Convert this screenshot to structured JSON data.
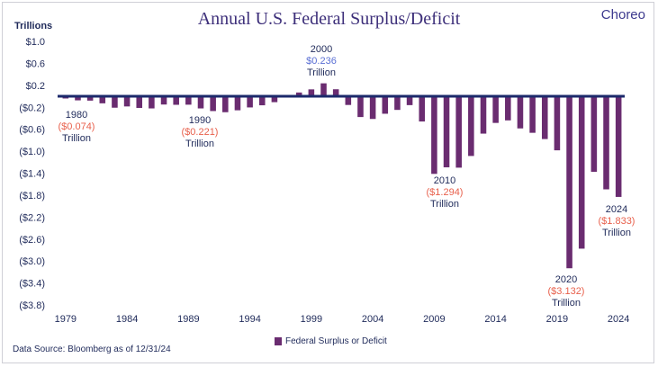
{
  "header": {
    "title": "Annual U.S. Federal Surplus/Deficit",
    "brand": "Choreo",
    "units_label": "Trillions"
  },
  "footer": {
    "source": "Data Source: Bloomberg as of 12/31/24"
  },
  "colors": {
    "bar": "#6a2c70",
    "zero_line": "#1c2a6b",
    "negative_value": "#e8604c",
    "positive_value": "#5a6fd4",
    "text": "#1f2a5a"
  },
  "chart_data": {
    "type": "bar",
    "title": "Annual U.S. Federal Surplus/Deficit",
    "ylabel": "Trillions",
    "ylim": [
      -3.8,
      1.0
    ],
    "yticks": [
      "$1.0",
      "$0.6",
      "$0.2",
      "($0.2)",
      "($0.6)",
      "($1.0)",
      "($1.4)",
      "($1.8)",
      "($2.2)",
      "($2.6)",
      "($3.0)",
      "($3.4)",
      "($3.8)"
    ],
    "ytick_values": [
      1.0,
      0.6,
      0.2,
      -0.2,
      -0.6,
      -1.0,
      -1.4,
      -1.8,
      -2.2,
      -2.6,
      -3.0,
      -3.4,
      -3.8
    ],
    "xticks": [
      "1979",
      "1984",
      "1989",
      "1994",
      "1999",
      "2004",
      "2009",
      "2014",
      "2019",
      "2024"
    ],
    "legend": [
      "Federal Surplus or Deficit"
    ],
    "legend_position": "bottom",
    "grid": false,
    "series": [
      {
        "name": "Federal Surplus or Deficit",
        "categories": [
          "1979",
          "1980",
          "1981",
          "1982",
          "1983",
          "1984",
          "1985",
          "1986",
          "1987",
          "1988",
          "1989",
          "1990",
          "1991",
          "1992",
          "1993",
          "1994",
          "1995",
          "1996",
          "1997",
          "1998",
          "1999",
          "2000",
          "2001",
          "2002",
          "2003",
          "2004",
          "2005",
          "2006",
          "2007",
          "2008",
          "2009",
          "2010",
          "2011",
          "2012",
          "2013",
          "2014",
          "2015",
          "2016",
          "2017",
          "2018",
          "2019",
          "2020",
          "2021",
          "2022",
          "2023",
          "2024"
        ],
        "values": [
          -0.04,
          -0.074,
          -0.079,
          -0.128,
          -0.208,
          -0.185,
          -0.212,
          -0.221,
          -0.15,
          -0.155,
          -0.153,
          -0.221,
          -0.269,
          -0.29,
          -0.255,
          -0.203,
          -0.164,
          -0.107,
          -0.022,
          0.069,
          0.126,
          0.236,
          0.128,
          -0.158,
          -0.378,
          -0.413,
          -0.318,
          -0.248,
          -0.161,
          -0.459,
          -1.413,
          -1.294,
          -1.3,
          -1.087,
          -0.68,
          -0.485,
          -0.439,
          -0.585,
          -0.665,
          -0.779,
          -0.984,
          -3.132,
          -2.775,
          -1.375,
          -1.695,
          -1.833
        ]
      }
    ],
    "annotations": [
      {
        "year": "1980",
        "value": "($0.074)",
        "unit": "Trillion"
      },
      {
        "year": "1990",
        "value": "($0.221)",
        "unit": "Trillion"
      },
      {
        "year": "2000",
        "value": "$0.236",
        "unit": "Trillion"
      },
      {
        "year": "2010",
        "value": "($1.294)",
        "unit": "Trillion"
      },
      {
        "year": "2020",
        "value": "($3.132)",
        "unit": "Trillion"
      },
      {
        "year": "2024",
        "value": "($1.833)",
        "unit": "Trillion"
      }
    ]
  }
}
